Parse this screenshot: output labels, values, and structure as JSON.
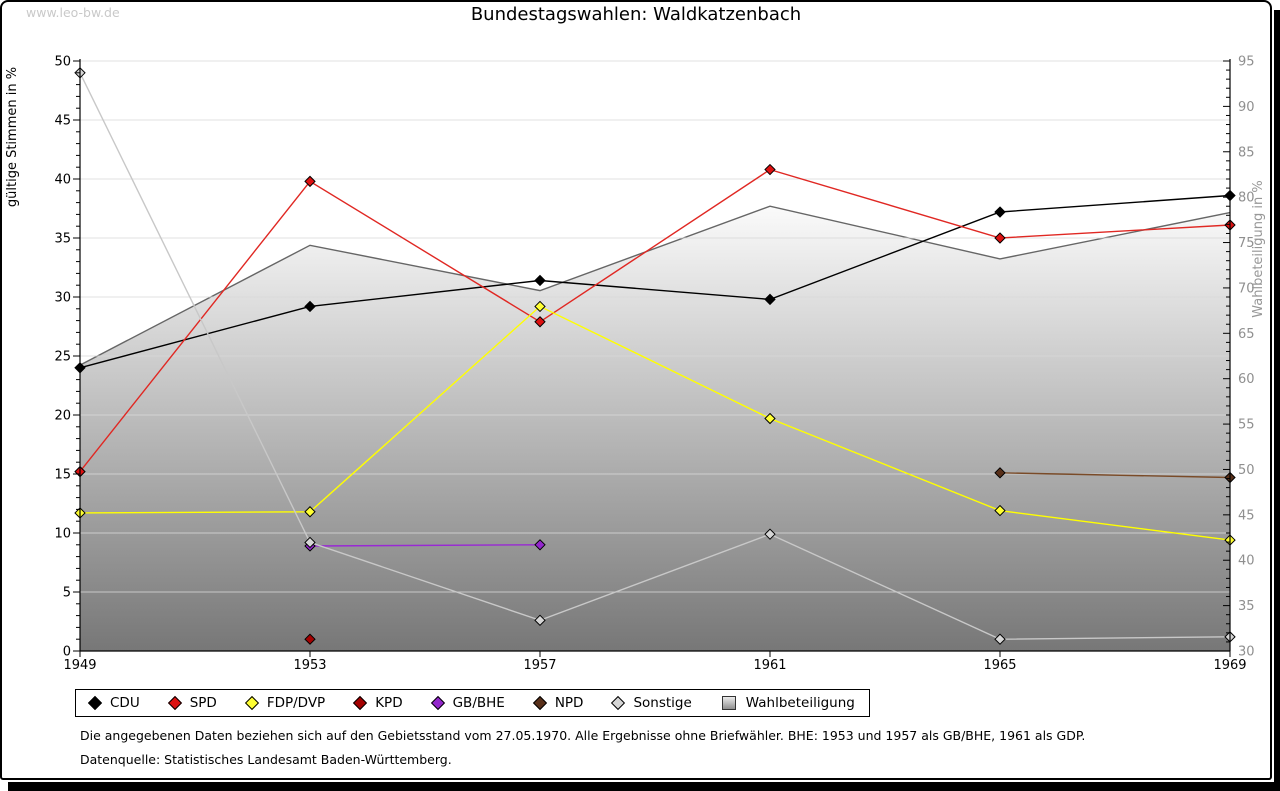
{
  "page": {
    "watermark": "www.leo-bw.de",
    "title": "Bundestagswahlen: Waldkatzenbach",
    "footnote_line1": "Die angegebenen Daten beziehen sich auf den Gebietsstand vom 27.05.1970. Alle Ergebnisse ohne Briefwähler. BHE: 1953 und 1957 als GB/BHE, 1961 als GDP.",
    "footnote_line2": "Datenquelle: Statistisches Landesamt Baden-Württemberg."
  },
  "chart_data": {
    "type": "line",
    "title": "Bundestagswahlen: Waldkatzenbach",
    "x": [
      1949,
      1953,
      1957,
      1961,
      1965,
      1969
    ],
    "grid": true,
    "legend_position": "bottom",
    "left_axis": {
      "label": "gültige Stimmen in %",
      "min": 0,
      "max": 50,
      "step": 5
    },
    "right_axis": {
      "label": "Wahlbeteiligung in %",
      "min": 30,
      "max": 95,
      "step": 5
    },
    "series": [
      {
        "name": "CDU",
        "axis": "left",
        "color": "#000000",
        "marker_color": "#000000",
        "values": [
          24.0,
          29.2,
          31.4,
          29.8,
          37.2,
          38.6
        ]
      },
      {
        "name": "SPD",
        "axis": "left",
        "color": "#e02823",
        "marker_color": "#dd1111",
        "values": [
          15.2,
          39.8,
          27.9,
          40.8,
          35.0,
          36.1
        ]
      },
      {
        "name": "FDP/DVP",
        "axis": "left",
        "color": "#ffff00",
        "marker_color": "#ffff33",
        "values": [
          11.7,
          11.8,
          29.2,
          19.7,
          11.9,
          9.4
        ]
      },
      {
        "name": "KPD",
        "axis": "left",
        "color": "#a40000",
        "marker_color": "#a40000",
        "values": [
          null,
          1.0,
          null,
          null,
          null,
          null
        ]
      },
      {
        "name": "GB/BHE",
        "axis": "left",
        "color": "#9929d4",
        "marker_color": "#9326cc",
        "values": [
          null,
          8.9,
          9.0,
          null,
          null,
          null
        ]
      },
      {
        "name": "NPD",
        "axis": "left",
        "color": "#7a4b28",
        "marker_color": "#59301a",
        "values": [
          null,
          null,
          null,
          null,
          15.1,
          14.7
        ]
      },
      {
        "name": "Sonstige",
        "axis": "left",
        "color": "#c8c8c8",
        "marker_color": "#d6d6d6",
        "values": [
          49.0,
          9.2,
          2.6,
          9.9,
          1.0,
          1.2
        ]
      },
      {
        "name": "Wahlbeteiligung",
        "axis": "right",
        "type": "area",
        "color": "#666666",
        "values": [
          61.5,
          74.7,
          69.7,
          79.0,
          73.2,
          78.3
        ]
      }
    ]
  }
}
